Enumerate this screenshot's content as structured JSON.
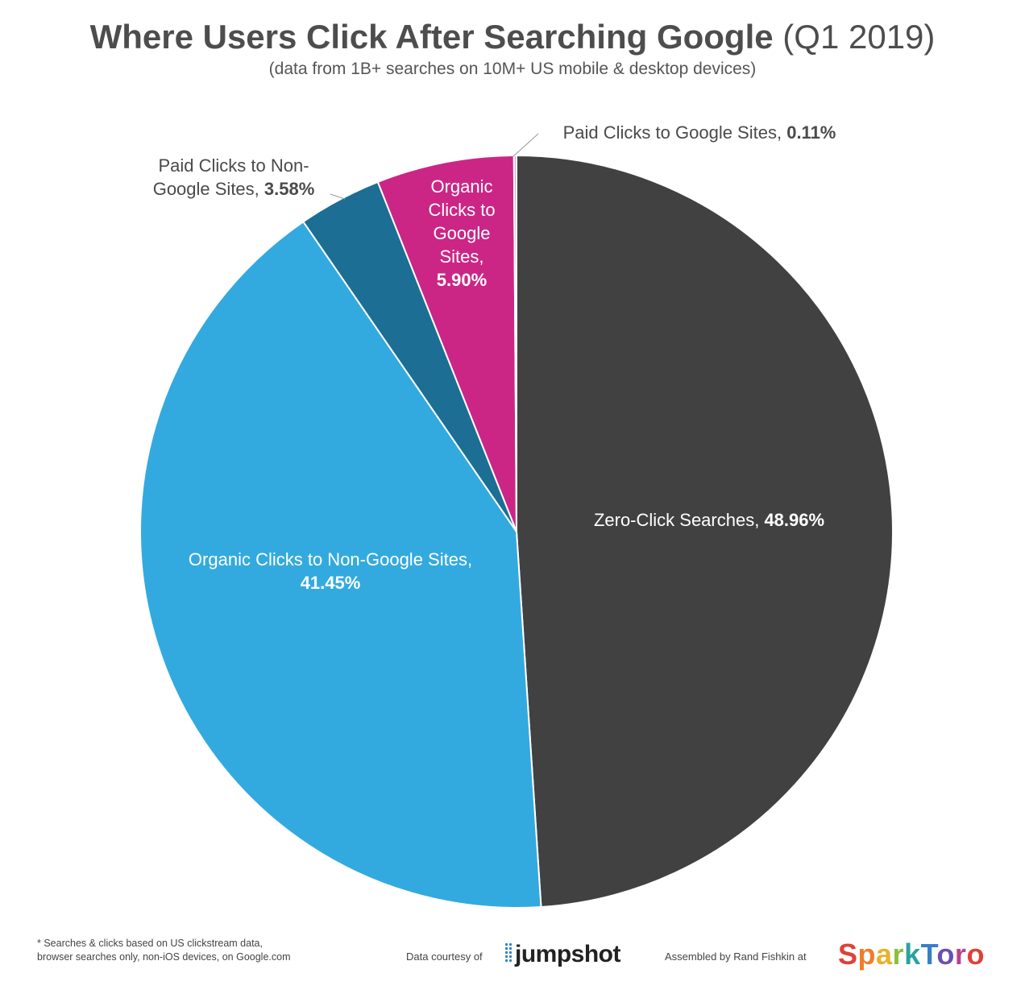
{
  "title": {
    "main": "Where Users Click After Searching Google",
    "period": "(Q1 2019)",
    "subtitle": "(data from 1B+ searches on 10M+ US mobile & desktop devices)"
  },
  "chart_data": {
    "type": "pie",
    "title": "Where Users Click After Searching Google (Q1 2019)",
    "slices": [
      {
        "name": "Zero-Click Searches",
        "value": 48.96,
        "value_label": "48.96%",
        "color": "#414141"
      },
      {
        "name": "Organic Clicks to Non-Google Sites",
        "value": 41.45,
        "value_label": "41.45%",
        "color": "#33aadf"
      },
      {
        "name": "Paid Clicks to Non-Google Sites",
        "value": 3.58,
        "value_label": "3.58%",
        "color": "#1c6e94"
      },
      {
        "name": "Organic Clicks to Google Sites",
        "value": 5.9,
        "value_label": "5.90%",
        "color": "#cb2686"
      },
      {
        "name": "Paid Clicks to Google Sites",
        "value": 0.11,
        "value_label": "0.11%",
        "color": "#e8a0c8"
      }
    ],
    "labels": {
      "zero_click": {
        "lines": [
          "Zero-Click Searches,"
        ],
        "value": "48.96%"
      },
      "organic_non_google": {
        "lines": [
          "Organic Clicks to Non-Google Sites,"
        ],
        "value": "41.45%"
      },
      "paid_non_google": {
        "lines": [
          "Paid Clicks to Non-",
          "Google Sites,"
        ],
        "value": "3.58%"
      },
      "organic_google": {
        "lines": [
          "Organic",
          "Clicks to",
          "Google",
          "Sites,"
        ],
        "value": "5.90%"
      },
      "paid_google": {
        "lines": [
          "Paid Clicks to Google Sites,"
        ],
        "value": "0.11%"
      }
    }
  },
  "footer": {
    "note_line1": "* Searches & clicks based on US clickstream data,",
    "note_line2": "browser searches only, non-iOS devices, on Google.com",
    "data_courtesy": "Data courtesy of",
    "jumpshot_logo": "jumpshot",
    "assembled_by": "Assembled by Rand Fishkin at",
    "sparktoro_letters": [
      {
        "ch": "S",
        "color": "#e0403a"
      },
      {
        "ch": "p",
        "color": "#f07d2c"
      },
      {
        "ch": "a",
        "color": "#e8b22a"
      },
      {
        "ch": "r",
        "color": "#8cbf3f"
      },
      {
        "ch": "k",
        "color": "#2aa3a0"
      },
      {
        "ch": "T",
        "color": "#3a7dc9"
      },
      {
        "ch": "o",
        "color": "#6a4fb4"
      },
      {
        "ch": "r",
        "color": "#b8438e"
      },
      {
        "ch": "o",
        "color": "#e0403a"
      }
    ]
  }
}
